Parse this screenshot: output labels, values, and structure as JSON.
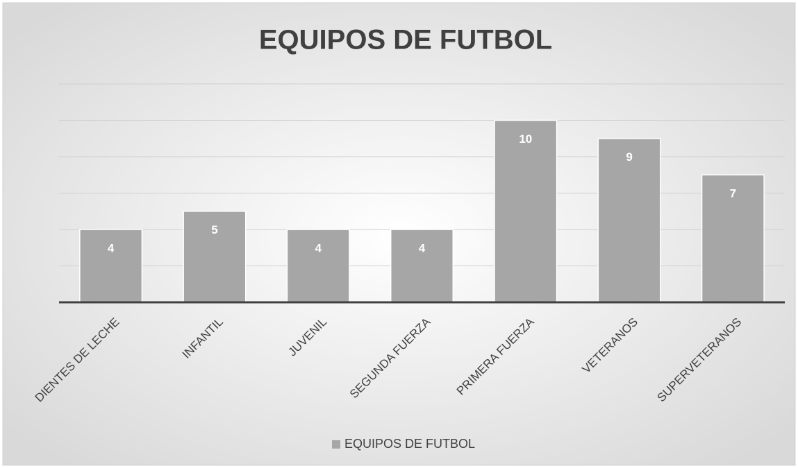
{
  "chart_data": {
    "type": "bar",
    "title": "EQUIPOS DE FUTBOL",
    "categories": [
      "DIENTES DE LECHE",
      "INFANTIL",
      "JUVENIL",
      "SEGUNDA FUERZA",
      "PRIMERA FUERZA",
      "VETERANOS",
      "SUPERVETERANOS"
    ],
    "series": [
      {
        "name": "EQUIPOS DE FUTBOL",
        "color": "#a6a6a6",
        "values": [
          4,
          5,
          4,
          4,
          10,
          9,
          7
        ]
      }
    ],
    "ylim": [
      0,
      12
    ],
    "yticks": [
      0,
      2,
      4,
      6,
      8,
      10,
      12
    ],
    "grid": true,
    "legend": "bottom"
  }
}
